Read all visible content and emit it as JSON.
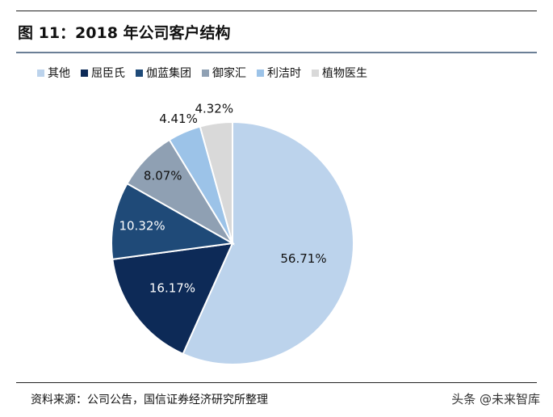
{
  "figure": {
    "title": "图 11：2018 年公司客户结构",
    "source": "资料来源：公司公告，国信证券经济研究所整理",
    "watermark": "头条 @未来智库"
  },
  "chart_data": {
    "type": "pie",
    "title": "图 11：2018 年公司客户结构",
    "legend_position": "top",
    "slices": [
      {
        "name": "其他",
        "value": 56.71,
        "label": "56.71%",
        "color": "#bcd3ec",
        "label_color": "#111111"
      },
      {
        "name": "屈臣氏",
        "value": 16.17,
        "label": "16.17%",
        "color": "#0d2a57",
        "label_color": "#ffffff"
      },
      {
        "name": "伽蓝集团",
        "value": 10.32,
        "label": "10.32%",
        "color": "#1f4a78",
        "label_color": "#ffffff"
      },
      {
        "name": "御家汇",
        "value": 8.07,
        "label": "8.07%",
        "color": "#8fa0b3",
        "label_color": "#111111"
      },
      {
        "name": "利洁时",
        "value": 4.41,
        "label": "4.41%",
        "color": "#9cc3e8",
        "label_color": "#111111"
      },
      {
        "name": "植物医生",
        "value": 4.32,
        "label": "4.32%",
        "color": "#d9d9d9",
        "label_color": "#111111"
      }
    ]
  }
}
